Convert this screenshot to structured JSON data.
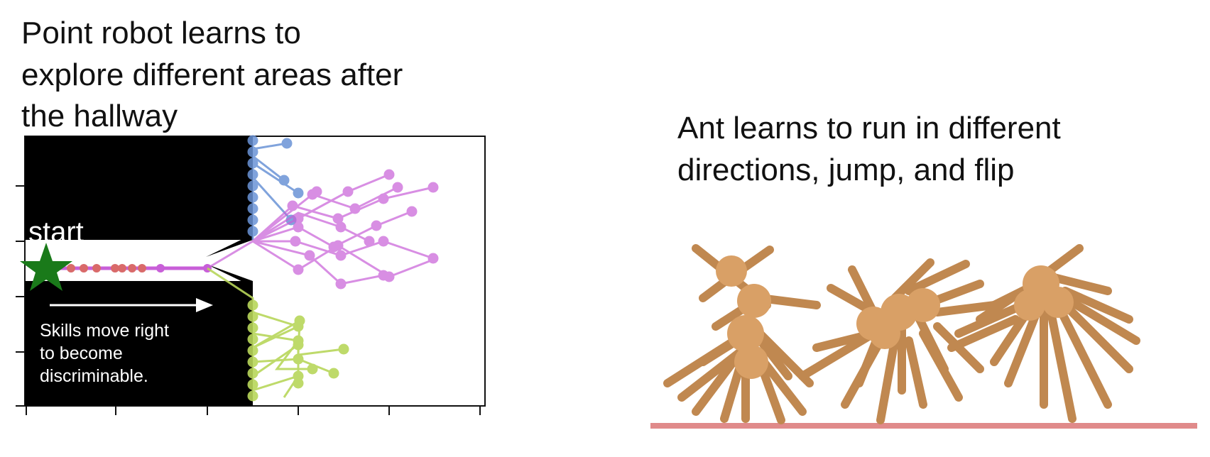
{
  "left_panel": {
    "caption_lines": [
      "Point robot learns to",
      "explore different areas after",
      "the hallway"
    ],
    "start_label": "start",
    "skills_lines": [
      "Skills move right",
      "to become",
      "discriminable."
    ]
  },
  "right_panel": {
    "caption_lines": [
      "Ant learns to run in different",
      "directions, jump, and flip"
    ]
  },
  "colors": {
    "wall": "#000000",
    "start_star": "#1a7a1a",
    "skill_blue": "#6a93d6",
    "skill_magenta": "#c85fd8",
    "skill_lime": "#b8d65a",
    "skill_red": "#d96a6a",
    "ant_body": "#d9a066",
    "floor": "#e08a8a"
  }
}
